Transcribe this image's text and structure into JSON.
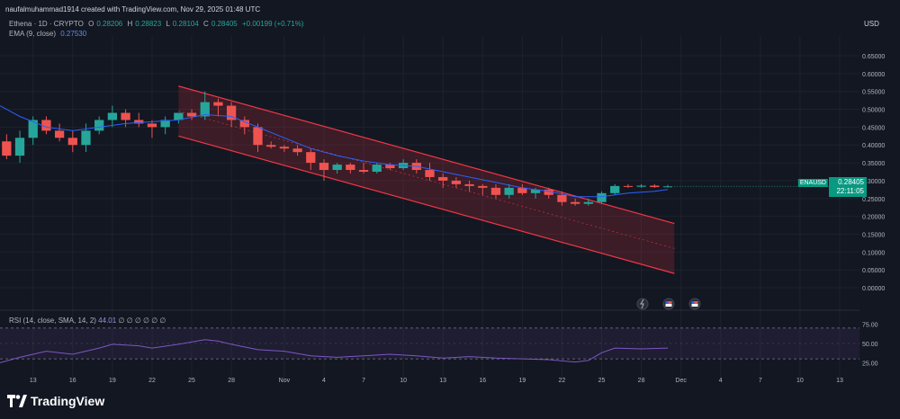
{
  "header": {
    "credit": "naufalmuhammad1914 created with TradingView.com, Nov 29, 2025 01:48 UTC"
  },
  "legend": {
    "symbol": "Ethena · 1D · CRYPTO",
    "o_label": "O",
    "o_value": "0.28206",
    "h_label": "H",
    "h_value": "0.28823",
    "l_label": "L",
    "l_value": "0.28104",
    "c_label": "C",
    "c_value": "0.28405",
    "change": "+0.00199 (+0.71%)",
    "ema_label": "EMA (9, close)",
    "ema_value": "0.27530"
  },
  "rsi_legend": {
    "label": "RSI (14, close, SMA, 14, 2)",
    "value": "44.01",
    "placeholders": "∅ ∅ ∅ ∅ ∅ ∅"
  },
  "axis": {
    "currency": "USD",
    "symbol_tag": "ENAUSD",
    "last_price": "0.28405",
    "countdown": "22:11:05"
  },
  "brand": {
    "name": "TradingView"
  },
  "colors": {
    "up": "#26a69a",
    "down": "#ef5350",
    "ema": "#2962ff",
    "rsi": "#7e57c2",
    "channel": "#f23645",
    "background": "#131722"
  },
  "chart_data": {
    "type": "candlestick",
    "symbol": "ENAUSD",
    "timeframe": "1D",
    "y_ticks": [
      "0.65000",
      "0.60000",
      "0.55000",
      "0.50000",
      "0.45000",
      "0.40000",
      "0.35000",
      "0.30000",
      "0.25000",
      "0.20000",
      "0.15000",
      "0.10000",
      "0.05000",
      "0.00000"
    ],
    "ylim": [
      0.0,
      0.65
    ],
    "x_ticks": [
      {
        "label": "13",
        "day": 13
      },
      {
        "label": "16",
        "day": 16
      },
      {
        "label": "19",
        "day": 19
      },
      {
        "label": "22",
        "day": 22
      },
      {
        "label": "25",
        "day": 25
      },
      {
        "label": "28",
        "day": 28
      },
      {
        "label": "Nov",
        "day": 32
      },
      {
        "label": "4",
        "day": 35
      },
      {
        "label": "7",
        "day": 38
      },
      {
        "label": "10",
        "day": 41
      },
      {
        "label": "13",
        "day": 44
      },
      {
        "label": "16",
        "day": 47
      },
      {
        "label": "19",
        "day": 50
      },
      {
        "label": "22",
        "day": 53
      },
      {
        "label": "25",
        "day": 56
      },
      {
        "label": "28",
        "day": 59
      },
      {
        "label": "Dec",
        "day": 62
      },
      {
        "label": "4",
        "day": 65
      },
      {
        "label": "7",
        "day": 68
      },
      {
        "label": "10",
        "day": 71
      },
      {
        "label": "13",
        "day": 74
      }
    ],
    "day_range": [
      10.5,
      75.5
    ],
    "candles": [
      {
        "day": 11,
        "o": 0.41,
        "h": 0.43,
        "l": 0.36,
        "c": 0.37
      },
      {
        "day": 12,
        "o": 0.37,
        "h": 0.44,
        "l": 0.35,
        "c": 0.42
      },
      {
        "day": 13,
        "o": 0.42,
        "h": 0.48,
        "l": 0.4,
        "c": 0.47
      },
      {
        "day": 14,
        "o": 0.47,
        "h": 0.48,
        "l": 0.43,
        "c": 0.44
      },
      {
        "day": 15,
        "o": 0.44,
        "h": 0.46,
        "l": 0.41,
        "c": 0.42
      },
      {
        "day": 16,
        "o": 0.42,
        "h": 0.44,
        "l": 0.38,
        "c": 0.4
      },
      {
        "day": 17,
        "o": 0.4,
        "h": 0.46,
        "l": 0.38,
        "c": 0.44
      },
      {
        "day": 18,
        "o": 0.44,
        "h": 0.48,
        "l": 0.43,
        "c": 0.47
      },
      {
        "day": 19,
        "o": 0.47,
        "h": 0.51,
        "l": 0.45,
        "c": 0.49
      },
      {
        "day": 20,
        "o": 0.49,
        "h": 0.5,
        "l": 0.45,
        "c": 0.47
      },
      {
        "day": 21,
        "o": 0.47,
        "h": 0.49,
        "l": 0.45,
        "c": 0.46
      },
      {
        "day": 22,
        "o": 0.46,
        "h": 0.47,
        "l": 0.42,
        "c": 0.45
      },
      {
        "day": 23,
        "o": 0.45,
        "h": 0.48,
        "l": 0.43,
        "c": 0.47
      },
      {
        "day": 24,
        "o": 0.47,
        "h": 0.49,
        "l": 0.46,
        "c": 0.49
      },
      {
        "day": 25,
        "o": 0.49,
        "h": 0.5,
        "l": 0.47,
        "c": 0.48
      },
      {
        "day": 26,
        "o": 0.48,
        "h": 0.55,
        "l": 0.47,
        "c": 0.52
      },
      {
        "day": 27,
        "o": 0.52,
        "h": 0.53,
        "l": 0.48,
        "c": 0.51
      },
      {
        "day": 28,
        "o": 0.51,
        "h": 0.52,
        "l": 0.45,
        "c": 0.47
      },
      {
        "day": 29,
        "o": 0.47,
        "h": 0.48,
        "l": 0.43,
        "c": 0.45
      },
      {
        "day": 30,
        "o": 0.45,
        "h": 0.46,
        "l": 0.38,
        "c": 0.4
      },
      {
        "day": 31,
        "o": 0.4,
        "h": 0.41,
        "l": 0.39,
        "c": 0.395
      },
      {
        "day": 32,
        "o": 0.395,
        "h": 0.4,
        "l": 0.38,
        "c": 0.39
      },
      {
        "day": 33,
        "o": 0.39,
        "h": 0.4,
        "l": 0.37,
        "c": 0.38
      },
      {
        "day": 34,
        "o": 0.38,
        "h": 0.39,
        "l": 0.33,
        "c": 0.35
      },
      {
        "day": 35,
        "o": 0.35,
        "h": 0.36,
        "l": 0.3,
        "c": 0.33
      },
      {
        "day": 36,
        "o": 0.33,
        "h": 0.35,
        "l": 0.32,
        "c": 0.345
      },
      {
        "day": 37,
        "o": 0.345,
        "h": 0.35,
        "l": 0.32,
        "c": 0.33
      },
      {
        "day": 38,
        "o": 0.33,
        "h": 0.35,
        "l": 0.32,
        "c": 0.325
      },
      {
        "day": 39,
        "o": 0.325,
        "h": 0.35,
        "l": 0.32,
        "c": 0.345
      },
      {
        "day": 40,
        "o": 0.345,
        "h": 0.35,
        "l": 0.33,
        "c": 0.335
      },
      {
        "day": 41,
        "o": 0.335,
        "h": 0.36,
        "l": 0.33,
        "c": 0.35
      },
      {
        "day": 42,
        "o": 0.35,
        "h": 0.36,
        "l": 0.32,
        "c": 0.33
      },
      {
        "day": 43,
        "o": 0.33,
        "h": 0.35,
        "l": 0.3,
        "c": 0.31
      },
      {
        "day": 44,
        "o": 0.31,
        "h": 0.32,
        "l": 0.28,
        "c": 0.3
      },
      {
        "day": 45,
        "o": 0.3,
        "h": 0.31,
        "l": 0.28,
        "c": 0.29
      },
      {
        "day": 46,
        "o": 0.29,
        "h": 0.3,
        "l": 0.27,
        "c": 0.285
      },
      {
        "day": 47,
        "o": 0.285,
        "h": 0.29,
        "l": 0.26,
        "c": 0.28
      },
      {
        "day": 48,
        "o": 0.28,
        "h": 0.29,
        "l": 0.25,
        "c": 0.26
      },
      {
        "day": 49,
        "o": 0.26,
        "h": 0.29,
        "l": 0.25,
        "c": 0.28
      },
      {
        "day": 50,
        "o": 0.28,
        "h": 0.29,
        "l": 0.26,
        "c": 0.265
      },
      {
        "day": 51,
        "o": 0.265,
        "h": 0.28,
        "l": 0.25,
        "c": 0.275
      },
      {
        "day": 52,
        "o": 0.275,
        "h": 0.28,
        "l": 0.25,
        "c": 0.26
      },
      {
        "day": 53,
        "o": 0.26,
        "h": 0.27,
        "l": 0.23,
        "c": 0.24
      },
      {
        "day": 54,
        "o": 0.24,
        "h": 0.25,
        "l": 0.23,
        "c": 0.235
      },
      {
        "day": 55,
        "o": 0.235,
        "h": 0.25,
        "l": 0.23,
        "c": 0.24
      },
      {
        "day": 56,
        "o": 0.24,
        "h": 0.27,
        "l": 0.235,
        "c": 0.265
      },
      {
        "day": 57,
        "o": 0.265,
        "h": 0.29,
        "l": 0.26,
        "c": 0.285
      },
      {
        "day": 58,
        "o": 0.285,
        "h": 0.29,
        "l": 0.28,
        "c": 0.283
      },
      {
        "day": 59,
        "o": 0.283,
        "h": 0.29,
        "l": 0.28,
        "c": 0.286
      },
      {
        "day": 60,
        "o": 0.286,
        "h": 0.29,
        "l": 0.28,
        "c": 0.282
      },
      {
        "day": 61,
        "o": 0.282,
        "h": 0.288,
        "l": 0.281,
        "c": 0.284
      }
    ],
    "ema": [
      {
        "day": 10.5,
        "v": 0.51
      },
      {
        "day": 12,
        "v": 0.48
      },
      {
        "day": 14,
        "v": 0.45
      },
      {
        "day": 16,
        "v": 0.44
      },
      {
        "day": 18,
        "v": 0.45
      },
      {
        "day": 20,
        "v": 0.46
      },
      {
        "day": 22,
        "v": 0.465
      },
      {
        "day": 24,
        "v": 0.47
      },
      {
        "day": 26,
        "v": 0.485
      },
      {
        "day": 28,
        "v": 0.48
      },
      {
        "day": 30,
        "v": 0.45
      },
      {
        "day": 32,
        "v": 0.42
      },
      {
        "day": 34,
        "v": 0.39
      },
      {
        "day": 36,
        "v": 0.37
      },
      {
        "day": 38,
        "v": 0.355
      },
      {
        "day": 40,
        "v": 0.345
      },
      {
        "day": 42,
        "v": 0.34
      },
      {
        "day": 44,
        "v": 0.325
      },
      {
        "day": 46,
        "v": 0.31
      },
      {
        "day": 48,
        "v": 0.295
      },
      {
        "day": 50,
        "v": 0.28
      },
      {
        "day": 52,
        "v": 0.27
      },
      {
        "day": 54,
        "v": 0.255
      },
      {
        "day": 56,
        "v": 0.255
      },
      {
        "day": 58,
        "v": 0.265
      },
      {
        "day": 60,
        "v": 0.27
      },
      {
        "day": 61,
        "v": 0.275
      }
    ],
    "channel": {
      "upper": [
        {
          "day": 24,
          "v": 0.565
        },
        {
          "day": 61.5,
          "v": 0.18
        }
      ],
      "lower": [
        {
          "day": 24,
          "v": 0.425
        },
        {
          "day": 61.5,
          "v": 0.04
        }
      ],
      "mid": [
        {
          "day": 24,
          "v": 0.495
        },
        {
          "day": 61.5,
          "v": 0.11
        }
      ]
    },
    "rsi": {
      "y_ticks": [
        "75.00",
        "50.00",
        "25.00"
      ],
      "ylim": [
        15,
        85
      ],
      "upper_band": 70,
      "lower_band": 30,
      "line": [
        {
          "day": 10.5,
          "v": 25
        },
        {
          "day": 12,
          "v": 32
        },
        {
          "day": 14,
          "v": 40
        },
        {
          "day": 16,
          "v": 36
        },
        {
          "day": 18,
          "v": 44
        },
        {
          "day": 19,
          "v": 49
        },
        {
          "day": 21,
          "v": 47
        },
        {
          "day": 22,
          "v": 44
        },
        {
          "day": 24,
          "v": 49
        },
        {
          "day": 26,
          "v": 55
        },
        {
          "day": 27,
          "v": 53
        },
        {
          "day": 28,
          "v": 49
        },
        {
          "day": 30,
          "v": 42
        },
        {
          "day": 32,
          "v": 40
        },
        {
          "day": 34,
          "v": 34
        },
        {
          "day": 36,
          "v": 32
        },
        {
          "day": 38,
          "v": 34
        },
        {
          "day": 40,
          "v": 36
        },
        {
          "day": 42,
          "v": 34
        },
        {
          "day": 44,
          "v": 31
        },
        {
          "day": 46,
          "v": 33
        },
        {
          "day": 48,
          "v": 31
        },
        {
          "day": 50,
          "v": 30
        },
        {
          "day": 52,
          "v": 29
        },
        {
          "day": 54,
          "v": 26
        },
        {
          "day": 55,
          "v": 28
        },
        {
          "day": 56,
          "v": 38
        },
        {
          "day": 57,
          "v": 44
        },
        {
          "day": 59,
          "v": 43
        },
        {
          "day": 61,
          "v": 44
        }
      ]
    }
  }
}
